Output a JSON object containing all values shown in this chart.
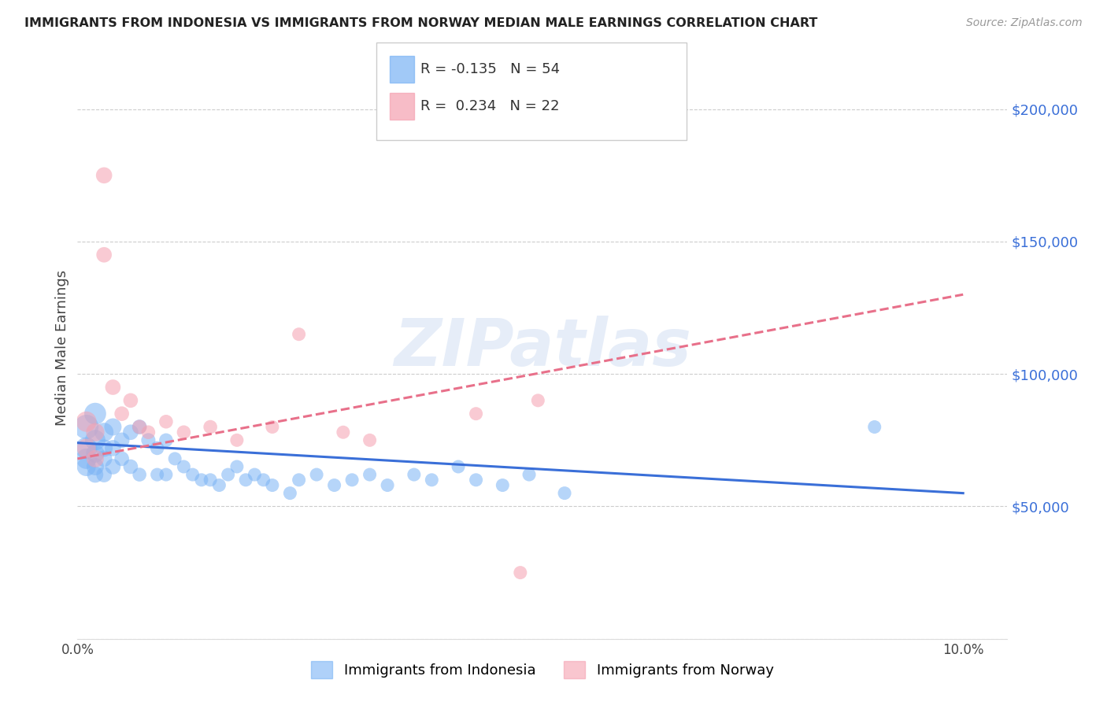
{
  "title": "IMMIGRANTS FROM INDONESIA VS IMMIGRANTS FROM NORWAY MEDIAN MALE EARNINGS CORRELATION CHART",
  "source": "Source: ZipAtlas.com",
  "ylabel": "Median Male Earnings",
  "xlim": [
    0.0,
    0.105
  ],
  "ylim": [
    0,
    220000
  ],
  "yticks": [
    0,
    50000,
    100000,
    150000,
    200000
  ],
  "grid_color": "#cccccc",
  "watermark": "ZIPatlas",
  "bg_color": "#ffffff",
  "indonesia_color": "#7ab3f5",
  "norway_color": "#f5a0b0",
  "trendline_indonesia_color": "#3a6fd8",
  "trendline_norway_color": "#e8708a",
  "R_indonesia": -0.135,
  "N_indonesia": 54,
  "R_norway": 0.234,
  "N_norway": 22,
  "indonesia_x": [
    0.001,
    0.001,
    0.001,
    0.001,
    0.002,
    0.002,
    0.002,
    0.002,
    0.002,
    0.003,
    0.003,
    0.003,
    0.003,
    0.004,
    0.004,
    0.004,
    0.005,
    0.005,
    0.006,
    0.006,
    0.007,
    0.007,
    0.008,
    0.009,
    0.009,
    0.01,
    0.01,
    0.011,
    0.012,
    0.013,
    0.014,
    0.015,
    0.016,
    0.017,
    0.018,
    0.019,
    0.02,
    0.021,
    0.022,
    0.024,
    0.025,
    0.027,
    0.029,
    0.031,
    0.033,
    0.035,
    0.038,
    0.04,
    0.043,
    0.045,
    0.048,
    0.051,
    0.055,
    0.09
  ],
  "indonesia_y": [
    80000,
    72000,
    68000,
    65000,
    85000,
    75000,
    70000,
    65000,
    62000,
    78000,
    72000,
    68000,
    62000,
    80000,
    72000,
    65000,
    75000,
    68000,
    78000,
    65000,
    80000,
    62000,
    75000,
    72000,
    62000,
    75000,
    62000,
    68000,
    65000,
    62000,
    60000,
    60000,
    58000,
    62000,
    65000,
    60000,
    62000,
    60000,
    58000,
    55000,
    60000,
    62000,
    58000,
    60000,
    62000,
    58000,
    62000,
    60000,
    65000,
    60000,
    58000,
    62000,
    55000,
    80000
  ],
  "indonesia_sizes": [
    500,
    400,
    350,
    300,
    400,
    350,
    280,
    250,
    220,
    300,
    250,
    220,
    200,
    250,
    220,
    200,
    200,
    180,
    200,
    180,
    180,
    160,
    170,
    160,
    150,
    160,
    150,
    150,
    150,
    150,
    150,
    150,
    150,
    150,
    150,
    150,
    150,
    150,
    150,
    150,
    150,
    150,
    150,
    150,
    150,
    150,
    150,
    150,
    150,
    150,
    150,
    150,
    150,
    150
  ],
  "norway_x": [
    0.001,
    0.001,
    0.002,
    0.002,
    0.003,
    0.003,
    0.004,
    0.005,
    0.006,
    0.007,
    0.008,
    0.01,
    0.012,
    0.015,
    0.018,
    0.022,
    0.025,
    0.03,
    0.033,
    0.045,
    0.05,
    0.052
  ],
  "norway_y": [
    82000,
    72000,
    78000,
    68000,
    175000,
    145000,
    95000,
    85000,
    90000,
    80000,
    78000,
    82000,
    78000,
    80000,
    75000,
    80000,
    115000,
    78000,
    75000,
    85000,
    25000,
    90000
  ],
  "norway_sizes": [
    350,
    300,
    280,
    250,
    220,
    200,
    200,
    180,
    180,
    170,
    160,
    160,
    160,
    160,
    150,
    150,
    150,
    150,
    150,
    150,
    150,
    150
  ],
  "trendline_indo_x0": 0.0,
  "trendline_indo_x1": 0.1,
  "trendline_indo_y0": 74000,
  "trendline_indo_y1": 55000,
  "trendline_nor_x0": 0.0,
  "trendline_nor_x1": 0.1,
  "trendline_nor_y0": 68000,
  "trendline_nor_y1": 130000
}
